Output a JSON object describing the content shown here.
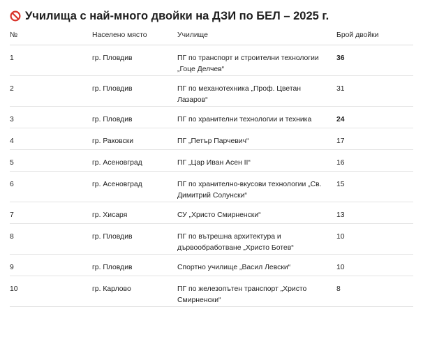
{
  "page": {
    "title": "Училища с най-много двойки на ДЗИ по БЕЛ – 2025 г.",
    "title_icon": "no-entry-icon",
    "accent_color": "#d9342b"
  },
  "table": {
    "headers": [
      "№",
      "Населено място",
      "Училище",
      "Брой двойки"
    ],
    "rows": [
      {
        "num": "1",
        "place": "гр. Пловдив",
        "school": "ПГ по транспорт и строителни технологии „Гоце Делчев“",
        "count": "36",
        "bold": true,
        "lines": 2
      },
      {
        "num": "2",
        "place": "гр. Пловдив",
        "school": "ПГ по механотехника „Проф. Цветан Лазаров“",
        "count": "31",
        "bold": false,
        "lines": 2
      },
      {
        "num": "3",
        "place": "гр. Пловдив",
        "school": "ПГ по хранителни технологии и техника",
        "count": "24",
        "bold": true,
        "lines": 1
      },
      {
        "num": "4",
        "place": "гр. Раковски",
        "school": "ПГ „Петър Парчевич“",
        "count": "17",
        "bold": false,
        "lines": 1
      },
      {
        "num": "5",
        "place": "гр. Асеновград",
        "school": "ПГ „Цар Иван Асен II“",
        "count": "16",
        "bold": false,
        "lines": 1
      },
      {
        "num": "6",
        "place": "гр. Асеновград",
        "school": "ПГ по хранително-вкусови технологии „Св. Димитрий Солунски“",
        "count": "15",
        "bold": false,
        "lines": 2
      },
      {
        "num": "7",
        "place": "гр. Хисаря",
        "school": "СУ „Христо Смирненски“",
        "count": "13",
        "bold": false,
        "lines": 1
      },
      {
        "num": "8",
        "place": "гр. Пловдив",
        "school": "ПГ по вътрешна архитектура и дървообработване „Христо Ботев“",
        "count": "10",
        "bold": false,
        "lines": 2
      },
      {
        "num": "9",
        "place": "гр. Пловдив",
        "school": "Спортно училище „Васил Левски“",
        "count": "10",
        "bold": false,
        "lines": 1
      },
      {
        "num": "10",
        "place": "гр. Карлово",
        "school": "ПГ по железопътен транспорт „Христо Смирненски“",
        "count": "8",
        "bold": false,
        "lines": 2
      }
    ]
  }
}
